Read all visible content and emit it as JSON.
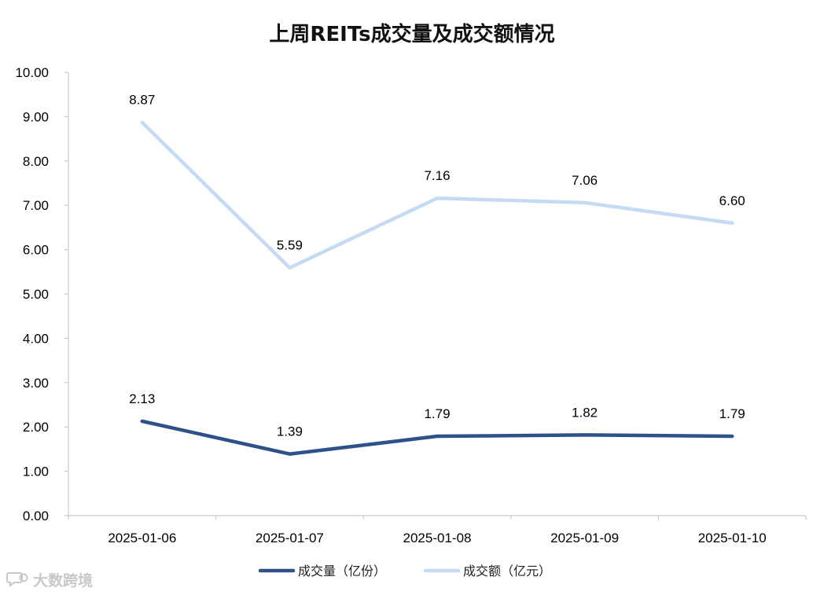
{
  "chart_data": {
    "type": "line",
    "title": "上周REITs成交量及成交额情况",
    "categories": [
      "2025-01-06",
      "2025-01-07",
      "2025-01-08",
      "2025-01-09",
      "2025-01-10"
    ],
    "ylim": [
      0,
      10
    ],
    "yticks": [
      "0.00",
      "1.00",
      "2.00",
      "3.00",
      "4.00",
      "5.00",
      "6.00",
      "7.00",
      "8.00",
      "9.00",
      "10.00"
    ],
    "grid": false,
    "legend_position": "bottom",
    "series": [
      {
        "name": "成交量（亿份）",
        "values": [
          2.13,
          1.39,
          1.79,
          1.82,
          1.79
        ],
        "labels": [
          "2.13",
          "1.39",
          "1.79",
          "1.82",
          "1.79"
        ],
        "color": "#2e5189"
      },
      {
        "name": "成交额（亿元）",
        "values": [
          8.87,
          5.59,
          7.16,
          7.06,
          6.6
        ],
        "labels": [
          "8.87",
          "5.59",
          "7.16",
          "7.06",
          "6.60"
        ],
        "color": "#c5dbf3"
      }
    ]
  },
  "watermark": {
    "text": "大数跨境",
    "icon": "chat-bubble-logo-icon"
  }
}
